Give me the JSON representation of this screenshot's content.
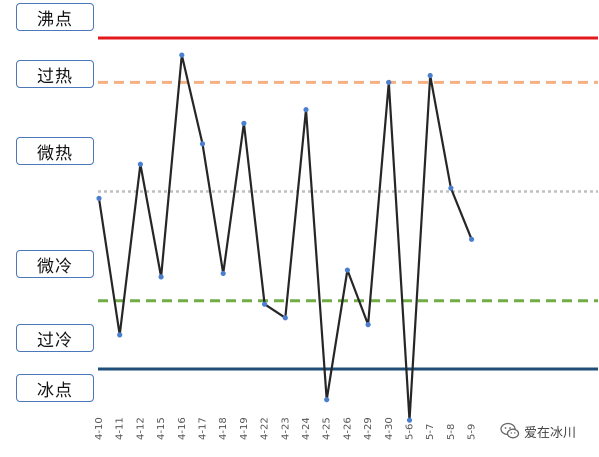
{
  "chart_data": {
    "type": "line",
    "categories": [
      "4-10",
      "4-11",
      "4-12",
      "4-15",
      "4-16",
      "4-17",
      "4-18",
      "4-19",
      "4-22",
      "4-23",
      "4-24",
      "4-25",
      "4-26",
      "4-29",
      "4-30",
      "5-6",
      "5-7",
      "5-8",
      "5-9"
    ],
    "values": [
      48,
      8,
      58,
      25,
      90,
      64,
      26,
      70,
      17,
      13,
      74,
      -11,
      27,
      11,
      82,
      -17,
      84,
      51,
      36
    ],
    "ylim": [
      -20,
      100
    ],
    "grid": false,
    "reference_lines": [
      {
        "level": 95,
        "color": "#e31a1c",
        "style": "solid"
      },
      {
        "level": 82,
        "color": "#f4b183",
        "style": "dashed"
      },
      {
        "level": 50,
        "color": "#bfbfbf",
        "style": "dotted"
      },
      {
        "level": 18,
        "color": "#70ad47",
        "style": "dashed"
      },
      {
        "level": -2,
        "color": "#1f4e79",
        "style": "solid"
      }
    ],
    "zone_labels": [
      "沸点",
      "过热",
      "微热",
      "微冷",
      "过冷",
      "冰点"
    ],
    "line_color": "#262626",
    "marker_color": "#4a7fd0"
  },
  "watermark": {
    "text": "爱在冰川",
    "icon": "wechat-icon"
  }
}
